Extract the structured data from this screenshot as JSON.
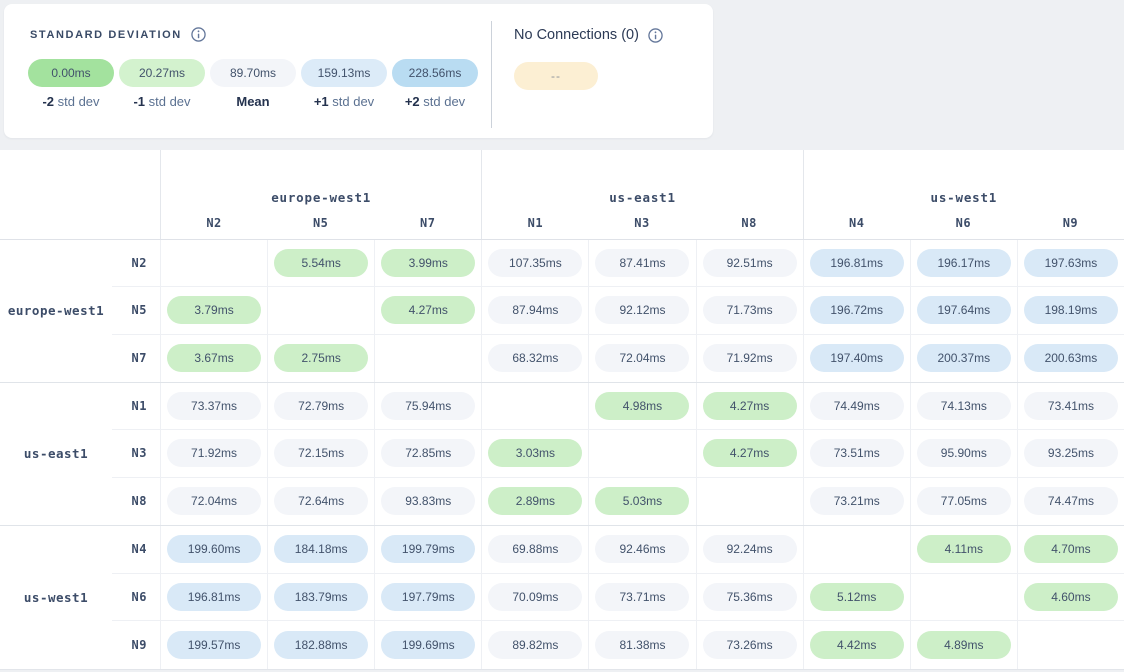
{
  "legend": {
    "title": "STANDARD DEVIATION",
    "items": [
      {
        "value": "0.00ms",
        "bold": "-2",
        "label": "std dev",
        "color": "#a3e29e"
      },
      {
        "value": "20.27ms",
        "bold": "-1",
        "label": "std dev",
        "color": "#d3f2ce"
      },
      {
        "value": "89.70ms",
        "bold": "Mean",
        "label": "",
        "color": "#f3f5f9"
      },
      {
        "value": "159.13ms",
        "bold": "+1",
        "label": "std dev",
        "color": "#dcebf8"
      },
      {
        "value": "228.56ms",
        "bold": "+2",
        "label": "std dev",
        "color": "#b9dcf2"
      }
    ],
    "no_connections": {
      "title": "No Connections (0)",
      "pill": "--",
      "pill_color": "#fcefd3"
    }
  },
  "matrix": {
    "cell_colors": {
      "g": "#cdefc8",
      "n": "#f3f5f9",
      "b": "#d9e9f7"
    },
    "column_groups": [
      {
        "label": "europe-west1",
        "nodes": [
          "N2",
          "N5",
          "N7"
        ]
      },
      {
        "label": "us-east1",
        "nodes": [
          "N1",
          "N3",
          "N8"
        ]
      },
      {
        "label": "us-west1",
        "nodes": [
          "N4",
          "N6",
          "N9"
        ]
      }
    ],
    "row_groups": [
      {
        "label": "europe-west1",
        "rows": [
          {
            "node": "N2",
            "cells": [
              {
                "t": "e",
                "v": ""
              },
              {
                "t": "g",
                "v": "5.54ms"
              },
              {
                "t": "g",
                "v": "3.99ms"
              },
              {
                "t": "n",
                "v": "107.35ms"
              },
              {
                "t": "n",
                "v": "87.41ms"
              },
              {
                "t": "n",
                "v": "92.51ms"
              },
              {
                "t": "b",
                "v": "196.81ms"
              },
              {
                "t": "b",
                "v": "196.17ms"
              },
              {
                "t": "b",
                "v": "197.63ms"
              }
            ]
          },
          {
            "node": "N5",
            "cells": [
              {
                "t": "g",
                "v": "3.79ms"
              },
              {
                "t": "e",
                "v": ""
              },
              {
                "t": "g",
                "v": "4.27ms"
              },
              {
                "t": "n",
                "v": "87.94ms"
              },
              {
                "t": "n",
                "v": "92.12ms"
              },
              {
                "t": "n",
                "v": "71.73ms"
              },
              {
                "t": "b",
                "v": "196.72ms"
              },
              {
                "t": "b",
                "v": "197.64ms"
              },
              {
                "t": "b",
                "v": "198.19ms"
              }
            ]
          },
          {
            "node": "N7",
            "cells": [
              {
                "t": "g",
                "v": "3.67ms"
              },
              {
                "t": "g",
                "v": "2.75ms"
              },
              {
                "t": "e",
                "v": ""
              },
              {
                "t": "n",
                "v": "68.32ms"
              },
              {
                "t": "n",
                "v": "72.04ms"
              },
              {
                "t": "n",
                "v": "71.92ms"
              },
              {
                "t": "b",
                "v": "197.40ms"
              },
              {
                "t": "b",
                "v": "200.37ms"
              },
              {
                "t": "b",
                "v": "200.63ms"
              }
            ]
          }
        ]
      },
      {
        "label": "us-east1",
        "rows": [
          {
            "node": "N1",
            "cells": [
              {
                "t": "n",
                "v": "73.37ms"
              },
              {
                "t": "n",
                "v": "72.79ms"
              },
              {
                "t": "n",
                "v": "75.94ms"
              },
              {
                "t": "e",
                "v": ""
              },
              {
                "t": "g",
                "v": "4.98ms"
              },
              {
                "t": "g",
                "v": "4.27ms"
              },
              {
                "t": "n",
                "v": "74.49ms"
              },
              {
                "t": "n",
                "v": "74.13ms"
              },
              {
                "t": "n",
                "v": "73.41ms"
              }
            ]
          },
          {
            "node": "N3",
            "cells": [
              {
                "t": "n",
                "v": "71.92ms"
              },
              {
                "t": "n",
                "v": "72.15ms"
              },
              {
                "t": "n",
                "v": "72.85ms"
              },
              {
                "t": "g",
                "v": "3.03ms"
              },
              {
                "t": "e",
                "v": ""
              },
              {
                "t": "g",
                "v": "4.27ms"
              },
              {
                "t": "n",
                "v": "73.51ms"
              },
              {
                "t": "n",
                "v": "95.90ms"
              },
              {
                "t": "n",
                "v": "93.25ms"
              }
            ]
          },
          {
            "node": "N8",
            "cells": [
              {
                "t": "n",
                "v": "72.04ms"
              },
              {
                "t": "n",
                "v": "72.64ms"
              },
              {
                "t": "n",
                "v": "93.83ms"
              },
              {
                "t": "g",
                "v": "2.89ms"
              },
              {
                "t": "g",
                "v": "5.03ms"
              },
              {
                "t": "e",
                "v": ""
              },
              {
                "t": "n",
                "v": "73.21ms"
              },
              {
                "t": "n",
                "v": "77.05ms"
              },
              {
                "t": "n",
                "v": "74.47ms"
              }
            ]
          }
        ]
      },
      {
        "label": "us-west1",
        "rows": [
          {
            "node": "N4",
            "cells": [
              {
                "t": "b",
                "v": "199.60ms"
              },
              {
                "t": "b",
                "v": "184.18ms"
              },
              {
                "t": "b",
                "v": "199.79ms"
              },
              {
                "t": "n",
                "v": "69.88ms"
              },
              {
                "t": "n",
                "v": "92.46ms"
              },
              {
                "t": "n",
                "v": "92.24ms"
              },
              {
                "t": "e",
                "v": ""
              },
              {
                "t": "g",
                "v": "4.11ms"
              },
              {
                "t": "g",
                "v": "4.70ms"
              }
            ]
          },
          {
            "node": "N6",
            "cells": [
              {
                "t": "b",
                "v": "196.81ms"
              },
              {
                "t": "b",
                "v": "183.79ms"
              },
              {
                "t": "b",
                "v": "197.79ms"
              },
              {
                "t": "n",
                "v": "70.09ms"
              },
              {
                "t": "n",
                "v": "73.71ms"
              },
              {
                "t": "n",
                "v": "75.36ms"
              },
              {
                "t": "g",
                "v": "5.12ms"
              },
              {
                "t": "e",
                "v": ""
              },
              {
                "t": "g",
                "v": "4.60ms"
              }
            ]
          },
          {
            "node": "N9",
            "cells": [
              {
                "t": "b",
                "v": "199.57ms"
              },
              {
                "t": "b",
                "v": "182.88ms"
              },
              {
                "t": "b",
                "v": "199.69ms"
              },
              {
                "t": "n",
                "v": "89.82ms"
              },
              {
                "t": "n",
                "v": "81.38ms"
              },
              {
                "t": "n",
                "v": "73.26ms"
              },
              {
                "t": "g",
                "v": "4.42ms"
              },
              {
                "t": "g",
                "v": "4.89ms"
              },
              {
                "t": "e",
                "v": ""
              }
            ]
          }
        ]
      }
    ]
  }
}
